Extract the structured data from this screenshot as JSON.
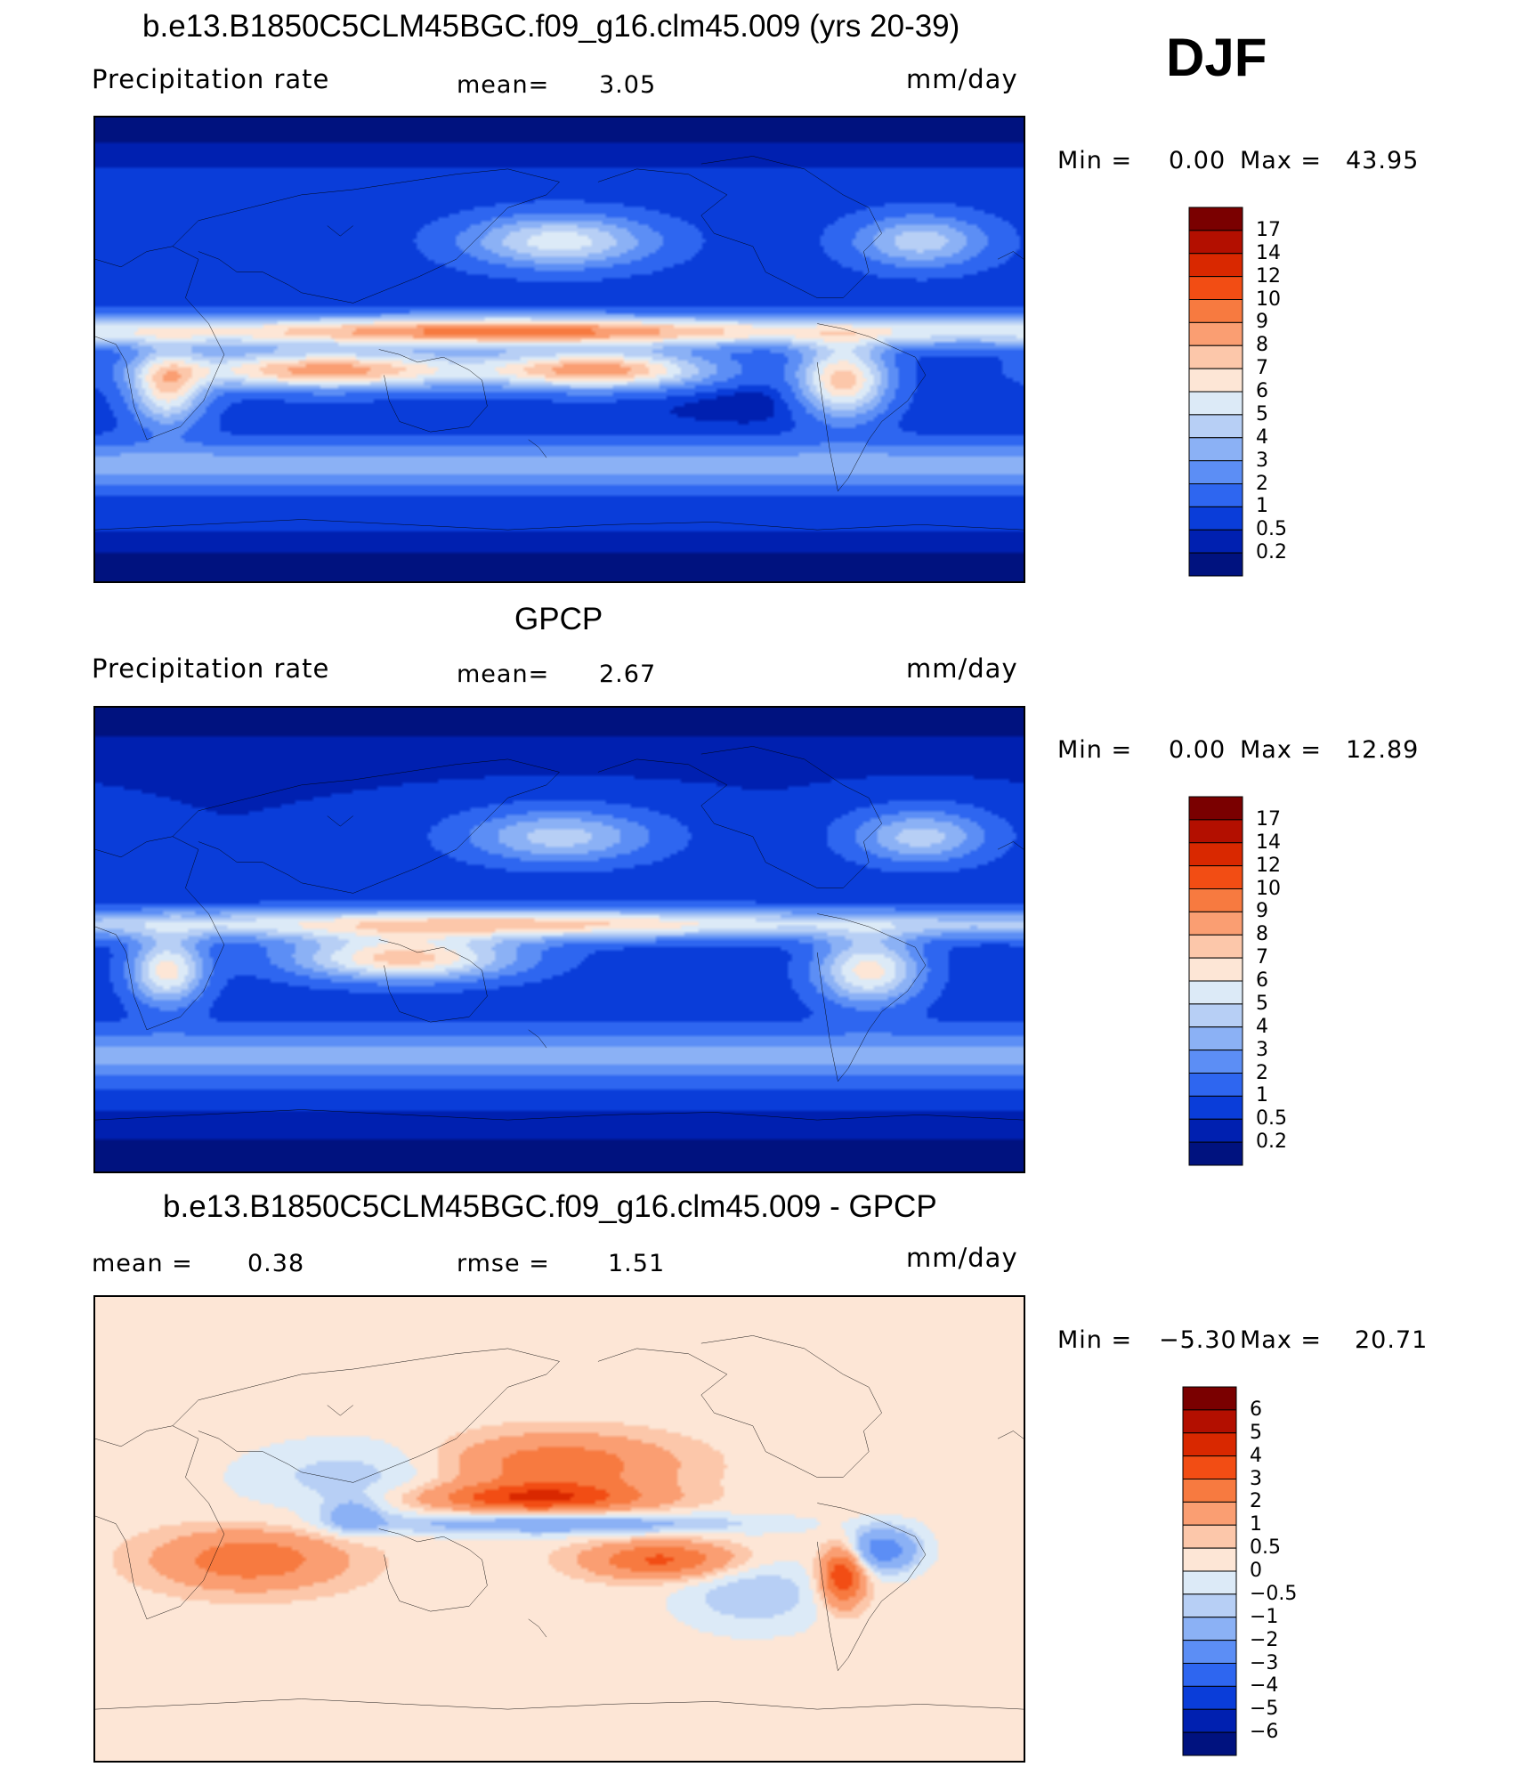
{
  "figure": {
    "season": "DJF",
    "panels": [
      {
        "id": "model",
        "title": "b.e13.B1850C5CLM45BGC.f09_g16.clm45.009 (yrs 20-39)",
        "left_label": "Precipitation  rate",
        "mid_prefix": "mean=",
        "mid_value": "3.05",
        "units": "mm/day",
        "min_label": "Min  =",
        "min_value": "0.00",
        "max_label": "Max  =",
        "max_value": "43.95",
        "palette": "abs"
      },
      {
        "id": "obs",
        "title": "GPCP",
        "left_label": "Precipitation  rate",
        "mid_prefix": "mean=",
        "mid_value": "2.67",
        "units": "mm/day",
        "min_label": "Min  =",
        "min_value": "0.00",
        "max_label": "Max  =",
        "max_value": "12.89",
        "palette": "abs"
      },
      {
        "id": "diff",
        "title": "b.e13.B1850C5CLM45BGC.f09_g16.clm45.009 - GPCP",
        "left_label": "mean  =",
        "left_value": "0.38",
        "mid_prefix": "rmse  =",
        "mid_value": "1.51",
        "units": "mm/day",
        "min_label": "Min  =",
        "min_value": "−5.30",
        "max_label": "Max  =",
        "max_value": "20.71",
        "palette": "diff"
      }
    ]
  },
  "chart_data": {
    "type": "heatmap",
    "abs_levels": [
      "17",
      "14",
      "12",
      "10",
      "9",
      "8",
      "7",
      "6",
      "5",
      "4",
      "3",
      "2",
      "1",
      "0.5",
      "0.2"
    ],
    "abs_colors": [
      "#7a0000",
      "#b30f00",
      "#d92800",
      "#f24d14",
      "#f77a40",
      "#fa9e72",
      "#fcc7aa",
      "#fde6d6",
      "#dceaf7",
      "#b7cff5",
      "#8bb1f5",
      "#5c8ef5",
      "#2e66f0",
      "#0a3dd9",
      "#0020b0",
      "#00127f"
    ],
    "diff_levels": [
      "6",
      "5",
      "4",
      "3",
      "2",
      "1",
      "0.5",
      "0",
      "−0.5",
      "−1",
      "−2",
      "−3",
      "−4",
      "−5",
      "−6"
    ],
    "diff_colors": [
      "#7a0000",
      "#b30f00",
      "#d92800",
      "#f24d14",
      "#f77a40",
      "#fa9e72",
      "#fcc7aa",
      "#fde6d6",
      "#dceaf7",
      "#b7cff5",
      "#8bb1f5",
      "#5c8ef5",
      "#2e66f0",
      "#0a3dd9",
      "#0020b0",
      "#00127f"
    ]
  }
}
